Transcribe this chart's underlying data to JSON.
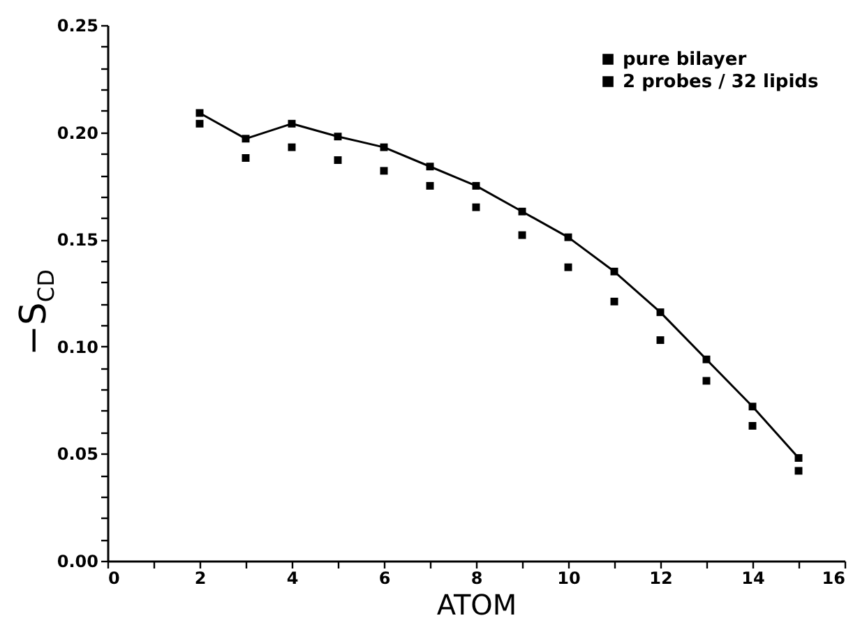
{
  "chart_data": {
    "type": "scatter",
    "xlabel": "ATOM",
    "ylabel": "−S$_{CD}$",
    "x": [
      2,
      3,
      4,
      5,
      6,
      7,
      8,
      9,
      10,
      11,
      12,
      13,
      14,
      15
    ],
    "series": [
      {
        "name": "pure bilayer",
        "type": "scatter",
        "color": "#000000",
        "values": [
          0.204,
          0.188,
          0.193,
          0.187,
          0.182,
          0.175,
          0.165,
          0.152,
          0.137,
          0.121,
          0.103,
          0.084,
          0.063,
          0.042
        ]
      },
      {
        "name": "2 probes / 32 lipids",
        "type": "line",
        "color": "#000000",
        "values": [
          0.209,
          0.197,
          0.204,
          0.198,
          0.193,
          0.184,
          0.175,
          0.163,
          0.151,
          0.135,
          0.116,
          0.094,
          0.072,
          0.048
        ]
      }
    ],
    "xlim": [
      0,
      16
    ],
    "xticks": [
      0,
      {
        "value": 1,
        "label": null
      },
      2,
      {
        "value": 3,
        "label": null
      },
      4,
      {
        "value": 5,
        "label": null
      },
      6,
      {
        "value": 7,
        "label": null
      },
      8,
      {
        "value": 9,
        "label": null
      },
      10,
      {
        "value": 11,
        "label": null
      },
      12,
      {
        "value": 13,
        "label": null
      },
      14,
      {
        "value": 15,
        "label": null
      },
      16
    ],
    "ylim": [
      0,
      0.25
    ],
    "yticks": [
      {
        "value": 0,
        "label": "0.00"
      },
      {
        "value": 0.01,
        "label": null
      },
      {
        "value": 0.02,
        "label": null
      },
      {
        "value": 0.03,
        "label": null
      },
      {
        "value": 0.04,
        "label": null
      },
      {
        "value": 0.05,
        "label": "0.05"
      },
      {
        "value": 0.06,
        "label": null
      },
      {
        "value": 0.07,
        "label": null
      },
      {
        "value": 0.08,
        "label": null
      },
      {
        "value": 0.09,
        "label": null
      },
      {
        "value": 0.1,
        "label": "0.10"
      },
      {
        "value": 0.11,
        "label": null
      },
      {
        "value": 0.12,
        "label": null
      },
      {
        "value": 0.13,
        "label": null
      },
      {
        "value": 0.14,
        "label": null
      },
      {
        "value": 0.15,
        "label": "0.15"
      },
      {
        "value": 0.16,
        "label": null
      },
      {
        "value": 0.17,
        "label": null
      },
      {
        "value": 0.18,
        "label": null
      },
      {
        "value": 0.19,
        "label": null
      },
      {
        "value": 0.2,
        "label": "0.20"
      },
      {
        "value": 0.21,
        "label": null
      },
      {
        "value": 0.22,
        "label": null
      },
      {
        "value": 0.23,
        "label": null
      },
      {
        "value": 0.24,
        "label": null
      },
      {
        "value": 0.25,
        "label": "0.25"
      }
    ],
    "grid": false,
    "legend": "top right",
    "marker": "square"
  }
}
